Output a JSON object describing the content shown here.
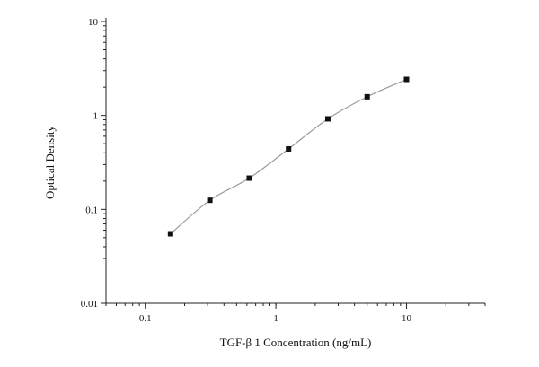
{
  "chart_data": {
    "type": "scatter",
    "xlabel": "TGF-β 1 Concentration (ng/mL)",
    "ylabel": "Optical Density",
    "x_scale": "log",
    "y_scale": "log",
    "xlim": [
      0.05,
      40
    ],
    "ylim": [
      0.01,
      10
    ],
    "x_ticks": [
      {
        "value": 0.1,
        "label": "0.1"
      },
      {
        "value": 1,
        "label": "1"
      },
      {
        "value": 10,
        "label": "10"
      }
    ],
    "y_ticks": [
      {
        "value": 0.01,
        "label": "0.01"
      },
      {
        "value": 0.1,
        "label": "0.1"
      },
      {
        "value": 1,
        "label": "1"
      },
      {
        "value": 10,
        "label": "10"
      }
    ],
    "grid": false,
    "series": [
      {
        "x": [
          0.156,
          0.312,
          0.625,
          1.25,
          2.5,
          5,
          10
        ],
        "y": [
          0.055,
          0.125,
          0.215,
          0.44,
          0.92,
          1.58,
          2.42
        ],
        "fit_curve": true
      }
    ],
    "colors": {
      "marker": "#111111",
      "curve": "#9a9a9a",
      "axis": "#222222"
    }
  }
}
